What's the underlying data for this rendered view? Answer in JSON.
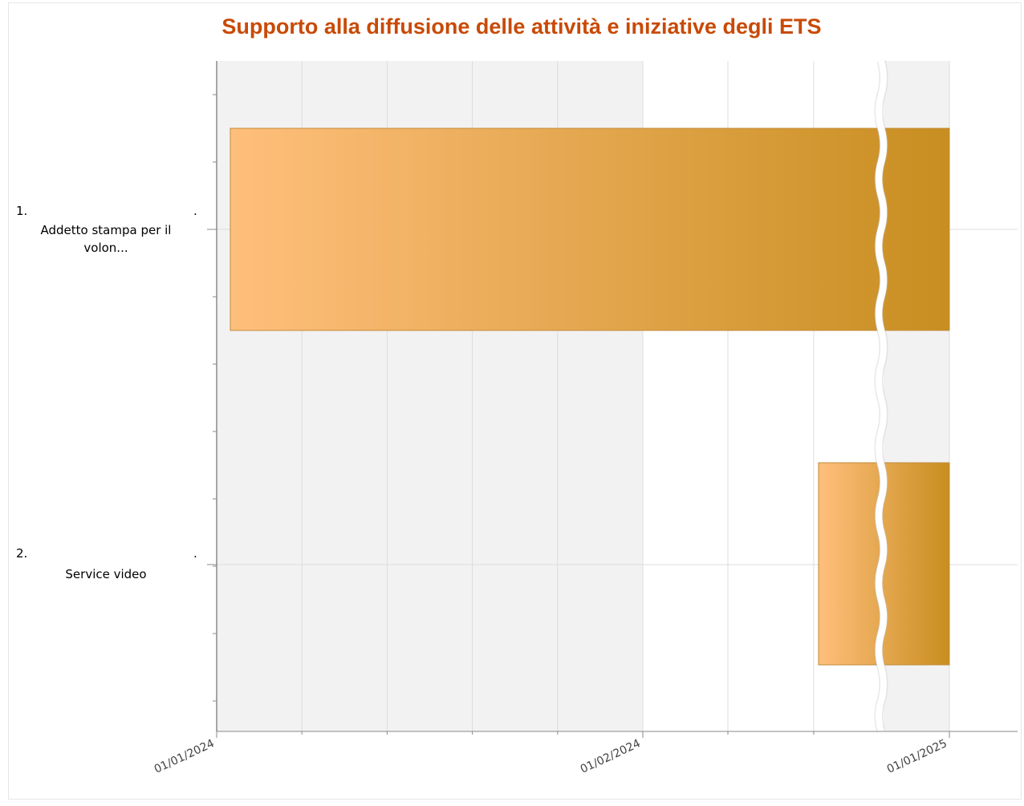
{
  "chart_data": {
    "type": "gantt",
    "title": "Supporto alla diffusione delle attività e iniziative degli ETS",
    "categories": [
      {
        "number": "1.",
        "label_lines": [
          "Addetto stampa per il",
          "volon..."
        ],
        "dot": "."
      },
      {
        "number": "2.",
        "label_lines": [
          "Service video"
        ],
        "dot": "."
      }
    ],
    "x_ticks": [
      "01/01/2024",
      "01/02/2024",
      "01/01/2025"
    ],
    "x_axis_break": "after 01/02/2024, before 01/01/2025",
    "bars": [
      {
        "category_index": 0,
        "start": "2024-01-01",
        "end": "2025-01-01"
      },
      {
        "category_index": 1,
        "start": "2024-02-20",
        "end": "2025-01-01"
      }
    ],
    "grid": true,
    "legend": "none",
    "colors": {
      "title": "#c84a06",
      "bar_start": "#ffbf7c",
      "bar_end": "#c88e20",
      "bar_stroke": "#c08a3a",
      "band": "#f2f2f2",
      "grid": "#dcdcdc",
      "axis": "#8a8a8a"
    }
  }
}
